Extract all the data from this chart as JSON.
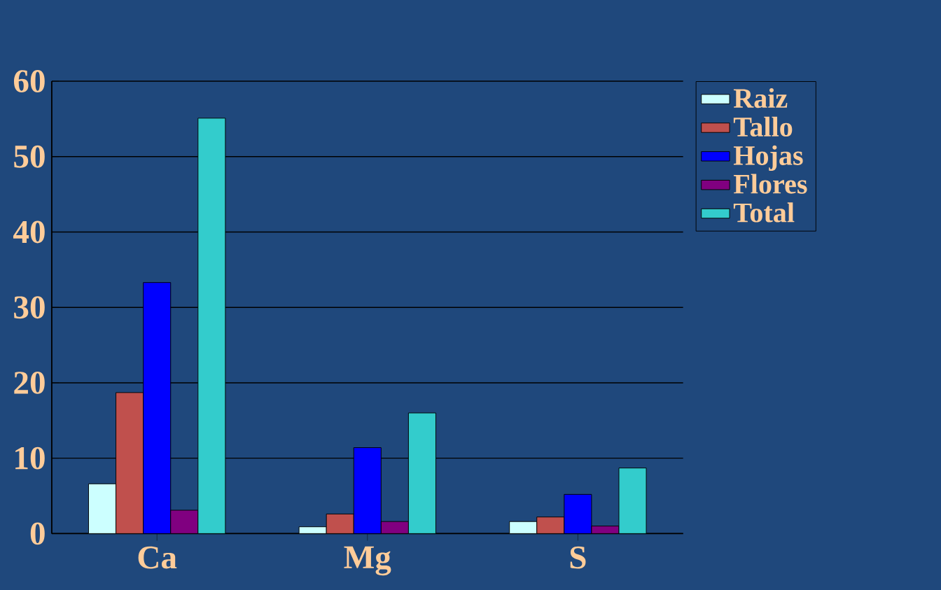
{
  "chart_data": {
    "type": "bar",
    "categories": [
      "Ca",
      "Mg",
      "S"
    ],
    "series": [
      {
        "name": "Raiz",
        "color": "#ccffff",
        "values": [
          6.6,
          0.9,
          1.6
        ]
      },
      {
        "name": "Tallo",
        "color": "#c0504d",
        "values": [
          18.7,
          2.6,
          2.2
        ]
      },
      {
        "name": "Hojas",
        "color": "#0000ff",
        "values": [
          33.3,
          11.4,
          5.2
        ]
      },
      {
        "name": "Flores",
        "color": "#800080",
        "values": [
          3.1,
          1.6,
          1.0
        ]
      },
      {
        "name": "Total",
        "color": "#33cccc",
        "values": [
          55.1,
          16.0,
          8.7
        ]
      }
    ],
    "ylim": [
      0,
      60
    ],
    "yticks": [
      0,
      10,
      20,
      30,
      40,
      50,
      60
    ],
    "grid": "y",
    "legend": "top right"
  }
}
